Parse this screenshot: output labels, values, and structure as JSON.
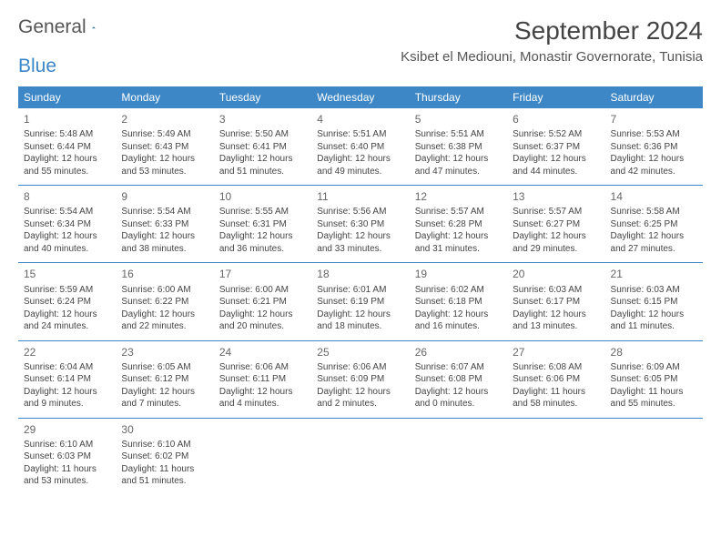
{
  "logo": {
    "word1": "General",
    "word2": "Blue"
  },
  "title": "September 2024",
  "location": "Ksibet el Mediouni, Monastir Governorate, Tunisia",
  "colors": {
    "header_bg": "#3d87c7",
    "header_fg": "#ffffff",
    "rule": "#3d87c7"
  },
  "weekdays": [
    "Sunday",
    "Monday",
    "Tuesday",
    "Wednesday",
    "Thursday",
    "Friday",
    "Saturday"
  ],
  "days": [
    {
      "n": "1",
      "rise": "5:48 AM",
      "set": "6:44 PM",
      "dh": "12",
      "dm": "55"
    },
    {
      "n": "2",
      "rise": "5:49 AM",
      "set": "6:43 PM",
      "dh": "12",
      "dm": "53"
    },
    {
      "n": "3",
      "rise": "5:50 AM",
      "set": "6:41 PM",
      "dh": "12",
      "dm": "51"
    },
    {
      "n": "4",
      "rise": "5:51 AM",
      "set": "6:40 PM",
      "dh": "12",
      "dm": "49"
    },
    {
      "n": "5",
      "rise": "5:51 AM",
      "set": "6:38 PM",
      "dh": "12",
      "dm": "47"
    },
    {
      "n": "6",
      "rise": "5:52 AM",
      "set": "6:37 PM",
      "dh": "12",
      "dm": "44"
    },
    {
      "n": "7",
      "rise": "5:53 AM",
      "set": "6:36 PM",
      "dh": "12",
      "dm": "42"
    },
    {
      "n": "8",
      "rise": "5:54 AM",
      "set": "6:34 PM",
      "dh": "12",
      "dm": "40"
    },
    {
      "n": "9",
      "rise": "5:54 AM",
      "set": "6:33 PM",
      "dh": "12",
      "dm": "38"
    },
    {
      "n": "10",
      "rise": "5:55 AM",
      "set": "6:31 PM",
      "dh": "12",
      "dm": "36"
    },
    {
      "n": "11",
      "rise": "5:56 AM",
      "set": "6:30 PM",
      "dh": "12",
      "dm": "33"
    },
    {
      "n": "12",
      "rise": "5:57 AM",
      "set": "6:28 PM",
      "dh": "12",
      "dm": "31"
    },
    {
      "n": "13",
      "rise": "5:57 AM",
      "set": "6:27 PM",
      "dh": "12",
      "dm": "29"
    },
    {
      "n": "14",
      "rise": "5:58 AM",
      "set": "6:25 PM",
      "dh": "12",
      "dm": "27"
    },
    {
      "n": "15",
      "rise": "5:59 AM",
      "set": "6:24 PM",
      "dh": "12",
      "dm": "24"
    },
    {
      "n": "16",
      "rise": "6:00 AM",
      "set": "6:22 PM",
      "dh": "12",
      "dm": "22"
    },
    {
      "n": "17",
      "rise": "6:00 AM",
      "set": "6:21 PM",
      "dh": "12",
      "dm": "20"
    },
    {
      "n": "18",
      "rise": "6:01 AM",
      "set": "6:19 PM",
      "dh": "12",
      "dm": "18"
    },
    {
      "n": "19",
      "rise": "6:02 AM",
      "set": "6:18 PM",
      "dh": "12",
      "dm": "16"
    },
    {
      "n": "20",
      "rise": "6:03 AM",
      "set": "6:17 PM",
      "dh": "12",
      "dm": "13"
    },
    {
      "n": "21",
      "rise": "6:03 AM",
      "set": "6:15 PM",
      "dh": "12",
      "dm": "11"
    },
    {
      "n": "22",
      "rise": "6:04 AM",
      "set": "6:14 PM",
      "dh": "12",
      "dm": "9"
    },
    {
      "n": "23",
      "rise": "6:05 AM",
      "set": "6:12 PM",
      "dh": "12",
      "dm": "7"
    },
    {
      "n": "24",
      "rise": "6:06 AM",
      "set": "6:11 PM",
      "dh": "12",
      "dm": "4"
    },
    {
      "n": "25",
      "rise": "6:06 AM",
      "set": "6:09 PM",
      "dh": "12",
      "dm": "2"
    },
    {
      "n": "26",
      "rise": "6:07 AM",
      "set": "6:08 PM",
      "dh": "12",
      "dm": "0"
    },
    {
      "n": "27",
      "rise": "6:08 AM",
      "set": "6:06 PM",
      "dh": "11",
      "dm": "58"
    },
    {
      "n": "28",
      "rise": "6:09 AM",
      "set": "6:05 PM",
      "dh": "11",
      "dm": "55"
    },
    {
      "n": "29",
      "rise": "6:10 AM",
      "set": "6:03 PM",
      "dh": "11",
      "dm": "53"
    },
    {
      "n": "30",
      "rise": "6:10 AM",
      "set": "6:02 PM",
      "dh": "11",
      "dm": "51"
    }
  ],
  "labels": {
    "sunrise": "Sunrise:",
    "sunset": "Sunset:",
    "daylight_prefix": "Daylight:",
    "hours_word": "hours",
    "and_word": "and",
    "minutes_word": "minutes."
  }
}
